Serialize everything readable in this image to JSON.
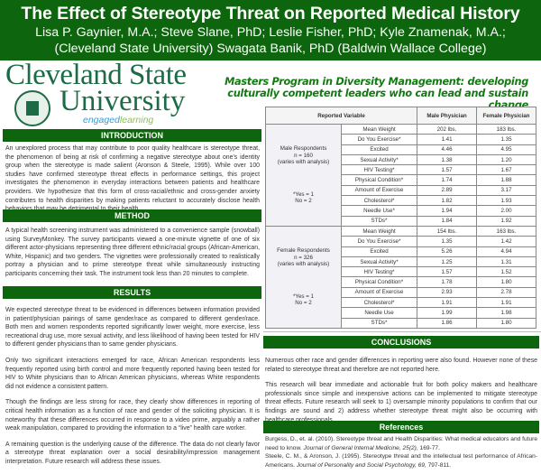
{
  "header": {
    "title": "The Effect of Stereotype Threat on Reported Medical History",
    "authors_line1": "Lisa P. Gaynier, M.A.; Steve Slane, PhD; Leslie Fisher, PhD; Kyle Znamenak, M.A.;",
    "authors_line2": "(Cleveland State University)  Swagata Banik, PhD (Baldwin Wallace College)"
  },
  "logo": {
    "line1": "Cleveland State",
    "line2": "University",
    "tagline_a": "engaged",
    "tagline_b": "learning"
  },
  "program_tagline": "Masters Program in Diversity Management: developing culturally competent leaders who can lead and sustain change",
  "sections": {
    "introduction": {
      "title": "INTRODUCTION",
      "paragraphs": [
        "An unexplored process that may contribute to poor quality healthcare is stereotype threat, the phenomenon of being at risk of confirming a negative stereotype about one's identity group when the stereotype is made salient (Aronson & Steele, 1995). While over 100 studies have confirmed stereotype threat effects in performance settings, this project investigates the phenomenon in everyday interactions between patients and healthcare providers. We hypothesize that this form of cross-racial/ethnic and cross-gender anxiety contributes to health disparities by making patients reluctant to accurately disclose health behaviors that may be detrimental to their health."
      ]
    },
    "method": {
      "title": "METHOD",
      "paragraphs": [
        "A typical health screening instrument was administered to a convenience sample (snowball) using SurveyMonkey. The survey participants viewed a one-minute vignette of one of six different actor-physicians representing three different ethnic/racial groups (African-American, White, Hispanic) and two genders. The vignettes were professionally created to realistically portray a physician and to prime stereotype threat while simultaneously instructing participants concerning their task. The instrument took less than 20 minutes to complete."
      ]
    },
    "results": {
      "title": "RESULTS",
      "paragraphs": [
        "We expected stereotype threat to be evidenced in differences between information provided in patient/physician pairings of same gender/race as compared to different gender/race. Both men and women respondents reported significantly lower weight, more exercise, less recreational drug use, more sexual activity, and less likelihood of having been tested for HIV to different gender physicians than to same gender physicians.",
        "Only two significant interactions emerged for race, African American respondents less frequently reported using birth control and more frequently reported having been tested for HIV to White physicians than to African American physicians, whereas White respondents did not evidence a consistent pattern.",
        "Though the findings are less strong for race, they clearly show differences in reporting of critical health information as a function of race and gender of the soliciting physician. It is noteworthy that these differences occurred in response to a video prime, arguably a rather weak manipulation, compared to providing the information to a “live” health care worker.",
        "A remaining question is the underlying cause of the difference. The data do not clearly favor a stereotype threat explanation over a social desirability/impression management interpretation. Future research will address these issues."
      ]
    },
    "conclusions": {
      "title": "CONCLUSIONS",
      "paragraphs": [
        "Numerous other race and gender differences in reporting were also found. However none of these related to stereotype threat and therefore are not reported here.",
        "This research will bear immediate and actionable fruit for both policy makers and healthcare professionals since simple and inexpensive actions can be implemented to mitigate stereotype threat effects. Future research will seek to 1) oversample minority populations to confirm that our findings are sound and  2) address whether stereotype threat might also be occurring with healthcare professionals."
      ]
    },
    "references": {
      "title": "References",
      "items": [
        {
          "text": "Burgess, D., et. al. (2010). Stereotype threat and Health Disparities: What medical educators and future need to know. ",
          "journal": "Journal of General Internal Medicine, 25(2)",
          "pages": ", 169-77."
        },
        {
          "text": "Steele, C. M., & Aronson, J. (1995). Stereotype threat and the intellectual test performance of African-Americans. ",
          "journal": "Journal of Personality and Social Psychology, 69,",
          "pages": " 797-811."
        }
      ]
    }
  },
  "table": {
    "headers": [
      "Reported Variable",
      "Male Physician",
      "Female Physician"
    ],
    "groups": [
      {
        "label1": "Male Respondents",
        "label2": "n = 160",
        "label3": "(varies with analysis)",
        "note1": "*Yes = 1",
        "note2": "No = 2",
        "rows": [
          [
            "Mean Weight",
            "202 lbs.",
            "183 lbs."
          ],
          [
            "Do You Exercise*",
            "1.41",
            "1.35"
          ],
          [
            "Excited",
            "4.46",
            "4.95"
          ],
          [
            "Sexual Activity*",
            "1.38",
            "1.20"
          ],
          [
            "HIV Testing*",
            "1.57",
            "1.67"
          ],
          [
            "Physical Condition*",
            "1.74",
            "1.88"
          ],
          [
            "Amount of Exercise",
            "2.89",
            "3.17"
          ],
          [
            "Cholesterol*",
            "1.82",
            "1.93"
          ],
          [
            "Needle Use*",
            "1.94",
            "2.00"
          ],
          [
            "STDs*",
            "1.84",
            "1.92"
          ]
        ]
      },
      {
        "label1": "Female Respondents",
        "label2": "n = 326",
        "label3": "(varies with analysis)",
        "note1": "*Yes = 1",
        "note2": "No = 2",
        "rows": [
          [
            "Mean Weight",
            "154 lbs.",
            "163 lbs."
          ],
          [
            "Do You Exercise*",
            "1.35",
            "1.42"
          ],
          [
            "Excited",
            "5.26",
            "4.94"
          ],
          [
            "Sexual Activity*",
            "1.25",
            "1.31"
          ],
          [
            "HIV Testing*",
            "1.57",
            "1.52"
          ],
          [
            "Physical Condition*",
            "1.78",
            "1.80"
          ],
          [
            "Amount of Exercise",
            "2.93",
            "2.78"
          ],
          [
            "Cholesterol*",
            "1.91",
            "1.91"
          ],
          [
            "Needle Use",
            "1.99",
            "1.98"
          ],
          [
            "STDs*",
            "1.86",
            "1.80"
          ]
        ]
      }
    ]
  },
  "colors": {
    "header_green": "#0d650d",
    "logo_green": "#1d6b46",
    "tagline_green": "#137a13"
  }
}
